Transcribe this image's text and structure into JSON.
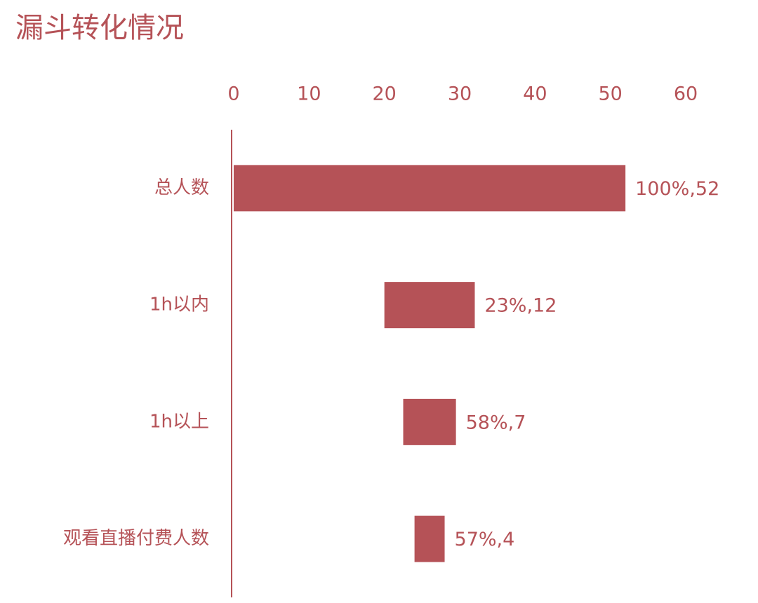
{
  "chart_data": {
    "type": "funnel",
    "title": "漏斗转化情况",
    "categories": [
      "总人数",
      "1h以内",
      "1h以上",
      "观看直播付费人数"
    ],
    "values": [
      52,
      12,
      7,
      4
    ],
    "value_labels": [
      "100%,52",
      "23%,12",
      "58%,7",
      "57%,4"
    ],
    "color": "#b55257",
    "xlim": [
      0,
      60
    ],
    "xticks": [
      0,
      10,
      20,
      30,
      40,
      50,
      60
    ]
  }
}
